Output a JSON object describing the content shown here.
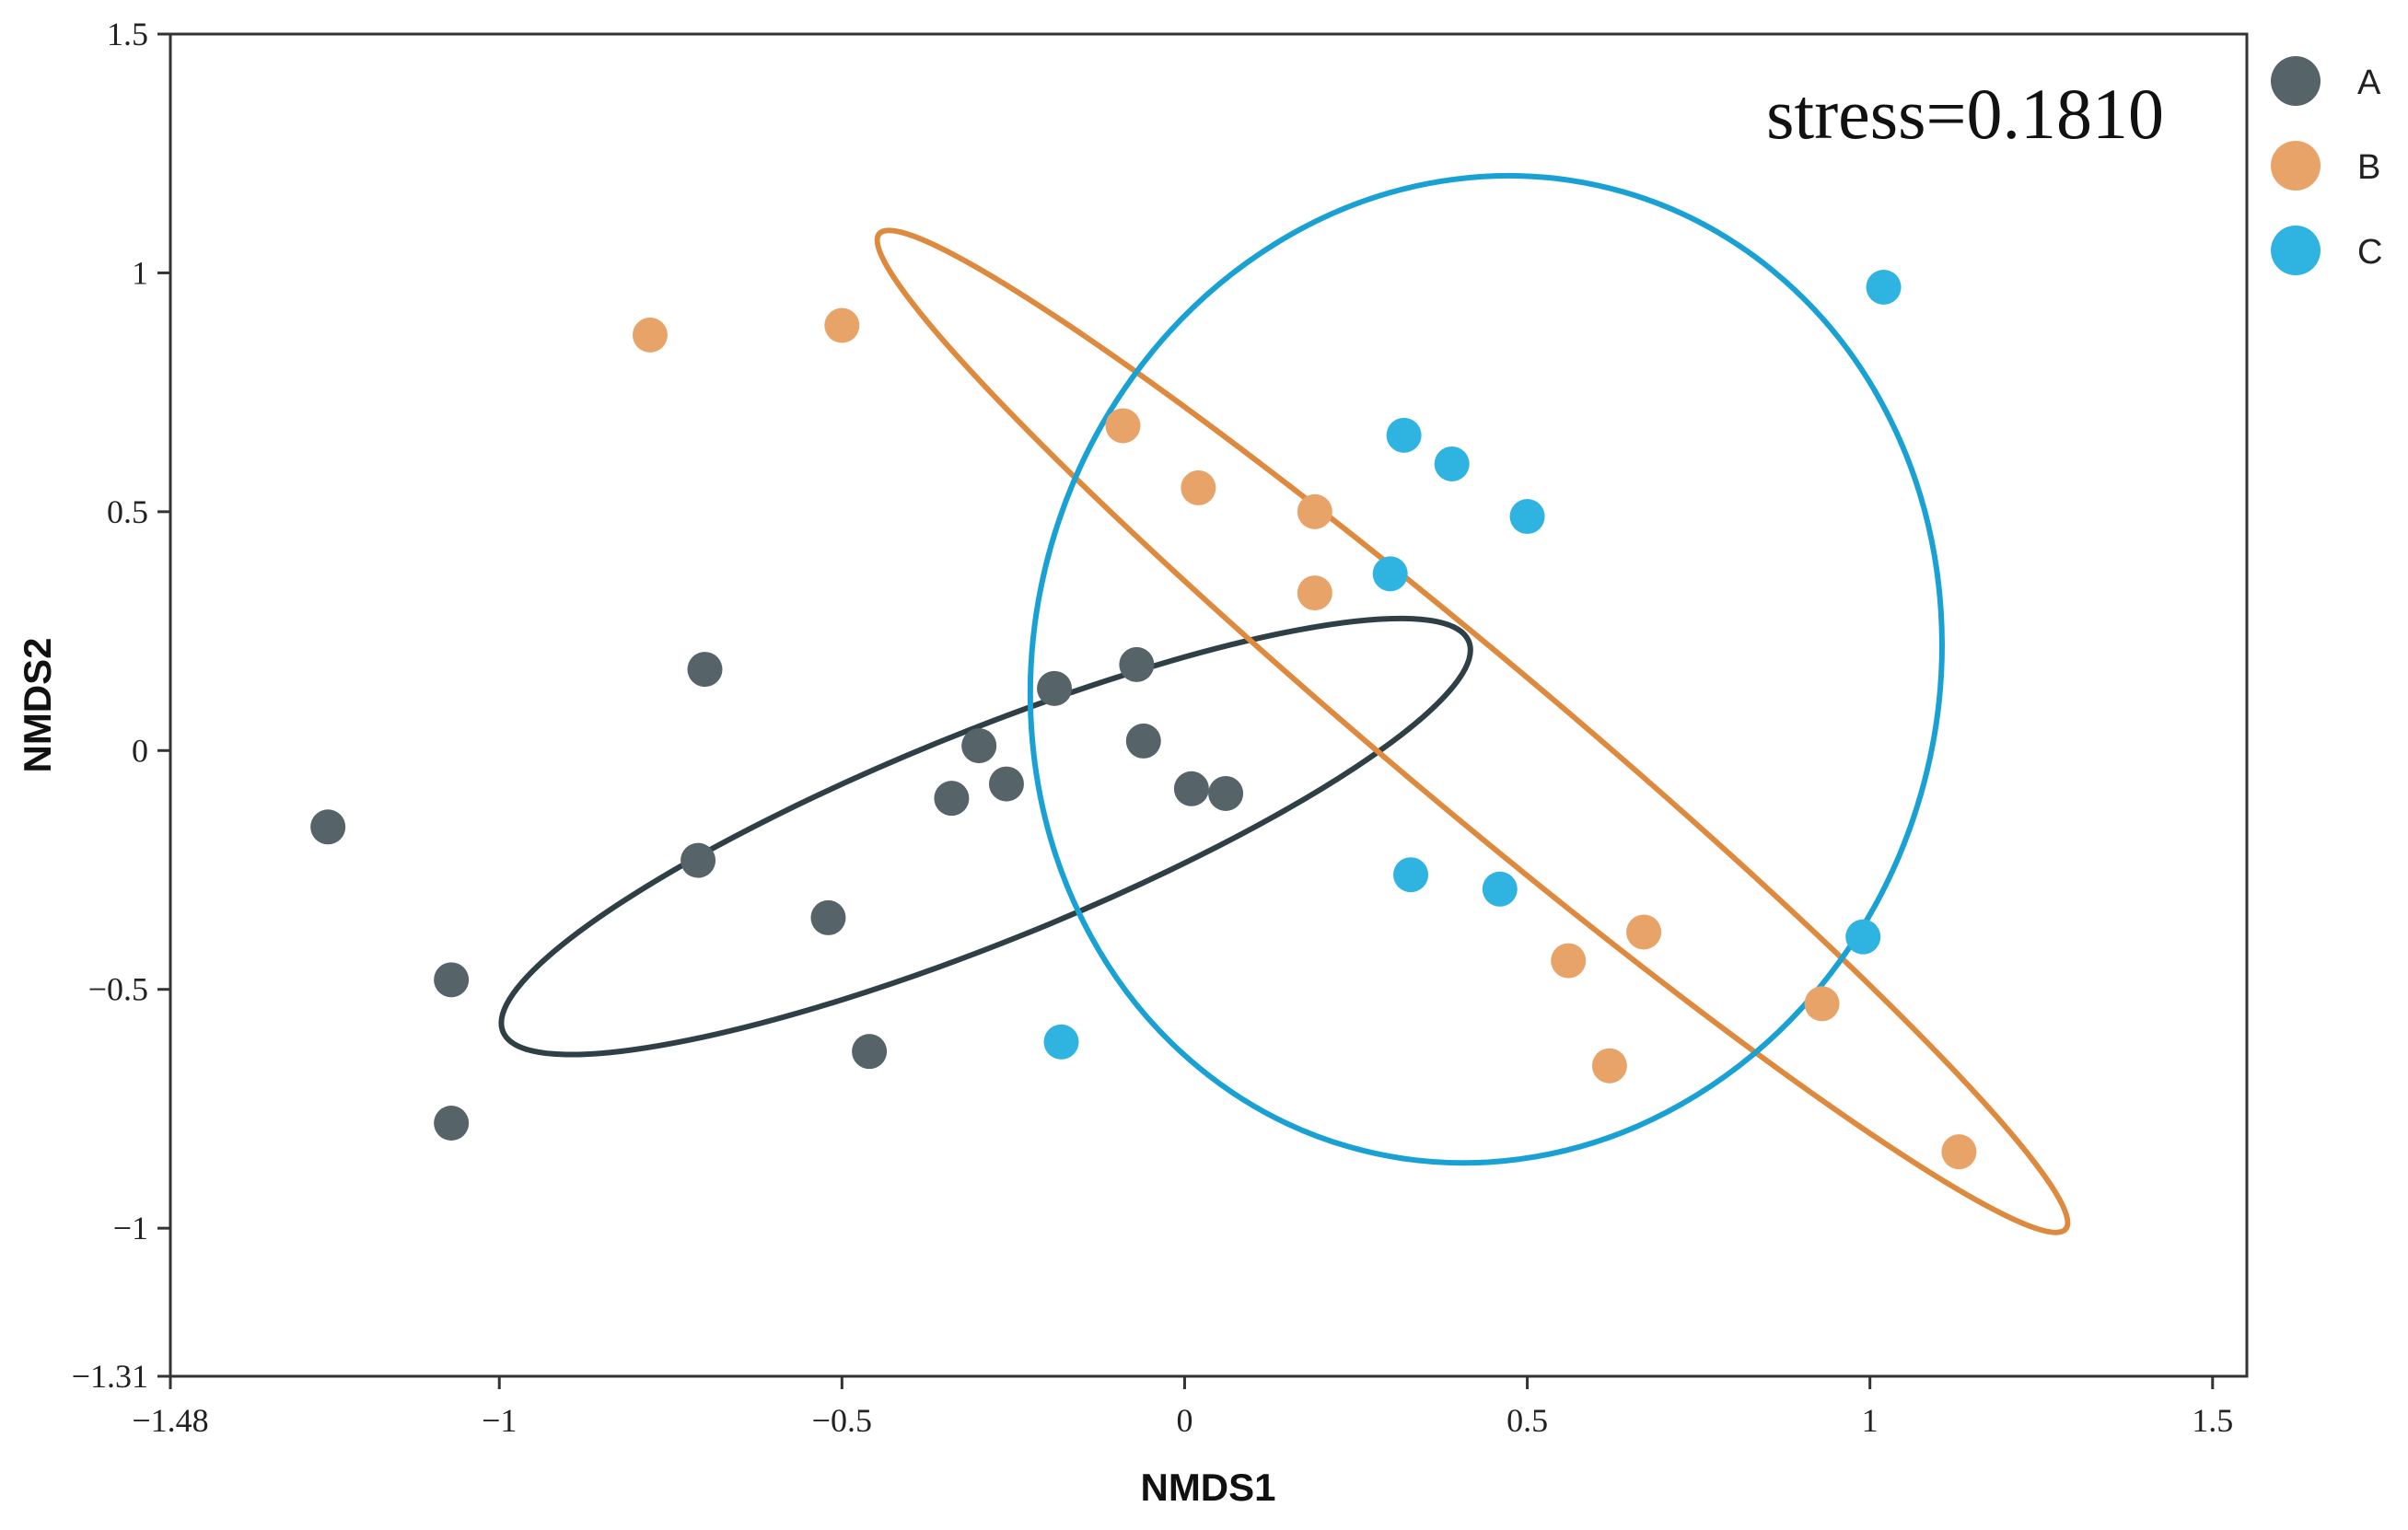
{
  "chart_data": {
    "type": "scatter",
    "xlabel": "NMDS1",
    "ylabel": "NMDS2",
    "xlim": [
      -1.48,
      1.55
    ],
    "ylim": [
      -1.31,
      1.5
    ],
    "xticks": [
      -1.48,
      -1,
      -0.5,
      0,
      0.5,
      1,
      1.5
    ],
    "xtick_labels": [
      "−1.48",
      "−1",
      "−0.5",
      "0",
      "0.5",
      "1",
      "1.5"
    ],
    "yticks": [
      -1.31,
      -1,
      -0.5,
      0,
      0.5,
      1,
      1.5
    ],
    "ytick_labels": [
      "−1.31",
      "−1",
      "−0.5",
      "0",
      "0.5",
      "1",
      "1.5"
    ],
    "annotation": "stress=0.1810",
    "legend_position": "top-right, outside plot",
    "series": [
      {
        "name": "A",
        "color": "#56646a",
        "ellipse_color": "#2e3f45",
        "points": [
          [
            -1.25,
            -0.16
          ],
          [
            -1.07,
            -0.48
          ],
          [
            -1.07,
            -0.78
          ],
          [
            -0.7,
            0.17
          ],
          [
            -0.71,
            -0.23
          ],
          [
            -0.52,
            -0.35
          ],
          [
            -0.46,
            -0.63
          ],
          [
            -0.34,
            -0.1
          ],
          [
            -0.3,
            0.01
          ],
          [
            -0.26,
            -0.07
          ],
          [
            -0.19,
            0.13
          ],
          [
            -0.07,
            0.18
          ],
          [
            -0.06,
            0.02
          ],
          [
            0.01,
            -0.08
          ],
          [
            0.06,
            -0.09
          ]
        ],
        "ellipse": {
          "cx": -0.29,
          "cy": -0.18,
          "rx": 0.76,
          "ry": 0.22,
          "angle_deg": 22
        }
      },
      {
        "name": "B",
        "color": "#e8a468",
        "ellipse_color": "#de8a3e",
        "points": [
          [
            -0.78,
            0.87
          ],
          [
            -0.5,
            0.89
          ],
          [
            -0.09,
            0.68
          ],
          [
            0.02,
            0.55
          ],
          [
            0.19,
            0.5
          ],
          [
            0.19,
            0.33
          ],
          [
            0.56,
            -0.44
          ],
          [
            0.67,
            -0.38
          ],
          [
            0.62,
            -0.66
          ],
          [
            0.93,
            -0.53
          ],
          [
            1.13,
            -0.84
          ]
        ],
        "ellipse": {
          "cx": 0.42,
          "cy": 0.04,
          "rx": 1.13,
          "ry": 0.16,
          "angle_deg": -40
        }
      },
      {
        "name": "C",
        "color": "#2fb4e2",
        "ellipse_color": "#1aa1d4",
        "points": [
          [
            1.02,
            0.97
          ],
          [
            0.32,
            0.66
          ],
          [
            0.39,
            0.6
          ],
          [
            0.5,
            0.49
          ],
          [
            0.3,
            0.37
          ],
          [
            0.33,
            -0.26
          ],
          [
            0.46,
            -0.29
          ],
          [
            0.99,
            -0.39
          ],
          [
            -0.18,
            -0.61
          ]
        ],
        "ellipse": {
          "cx": 0.44,
          "cy": 0.17,
          "rx": 0.66,
          "ry": 1.04,
          "angle_deg": -16
        }
      }
    ]
  }
}
